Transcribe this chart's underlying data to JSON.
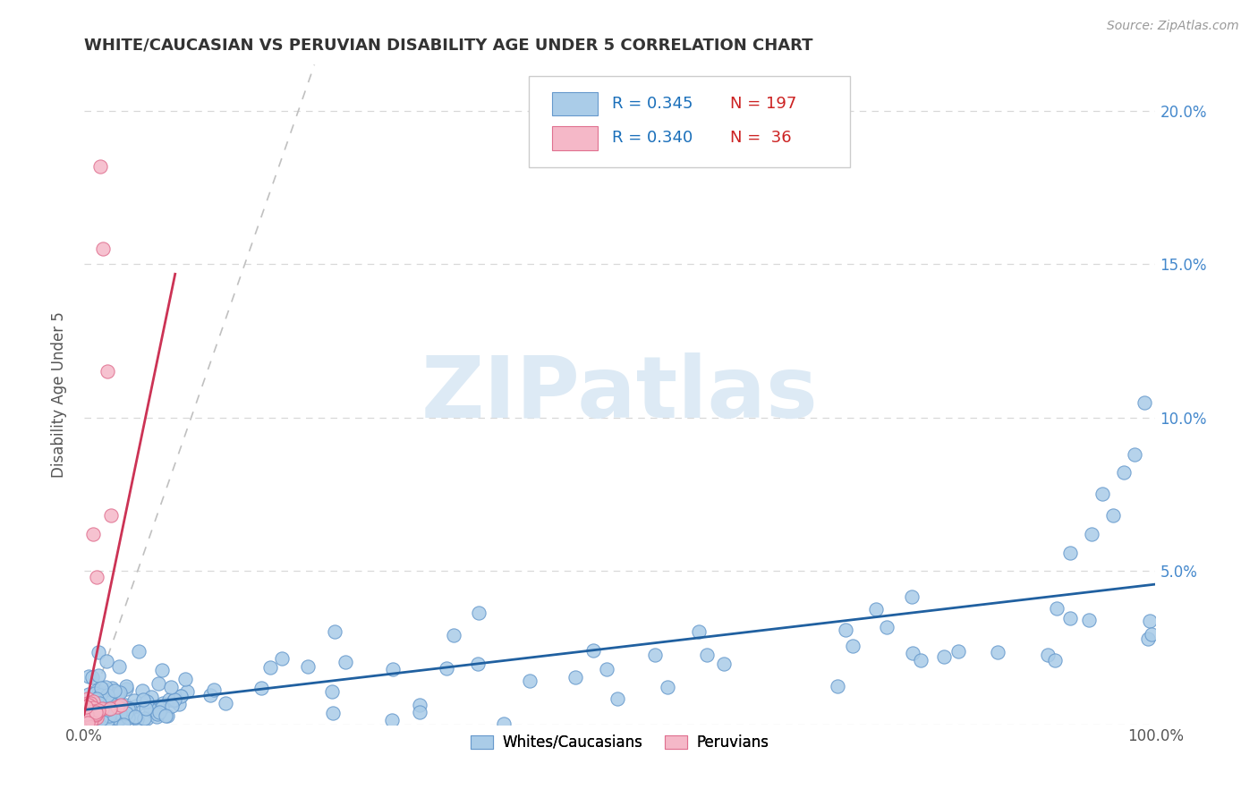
{
  "title": "WHITE/CAUCASIAN VS PERUVIAN DISABILITY AGE UNDER 5 CORRELATION CHART",
  "source": "Source: ZipAtlas.com",
  "ylabel": "Disability Age Under 5",
  "xlim": [
    0.0,
    1.0
  ],
  "ylim": [
    0.0,
    0.215
  ],
  "background_color": "#ffffff",
  "grid_color": "#d8d8d8",
  "watermark_text": "ZIPatlas",
  "legend_labels": [
    "Whites/Caucasians",
    "Peruvians"
  ],
  "white_R": "0.345",
  "white_N": "197",
  "peruvian_R": "0.340",
  "peruvian_N": "36",
  "blue_color": "#aacce8",
  "blue_edge_color": "#6699cc",
  "pink_color": "#f5b8c8",
  "pink_edge_color": "#e07090",
  "blue_line_color": "#2060a0",
  "pink_line_color": "#cc3355",
  "legend_R_color": "#1a6fba",
  "legend_N_color": "#cc2222",
  "right_axis_label_color": "#4488cc",
  "ytick_vals": [
    0.0,
    0.05,
    0.1,
    0.15,
    0.2
  ],
  "ytick_labels_left": [
    "",
    "",
    "",
    "",
    ""
  ],
  "ytick_labels_right": [
    "",
    "5.0%",
    "10.0%",
    "15.0%",
    "20.0%"
  ],
  "xtick_vals": [
    0.0,
    0.25,
    0.5,
    0.75,
    1.0
  ],
  "xtick_labels": [
    "0.0%",
    "",
    "",
    "",
    "100.0%"
  ]
}
